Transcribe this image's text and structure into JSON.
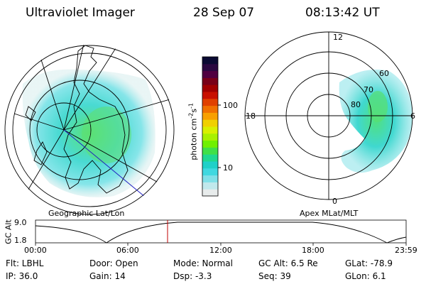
{
  "header": {
    "instrument": "Ultraviolet Imager",
    "date": "28 Sep 07",
    "time": "08:13:42 UT"
  },
  "colorbar": {
    "label": "photon cm",
    "label_exp1": "-2",
    "label_s": "s",
    "label_exp2": "-1",
    "ticks": [
      "100",
      "10"
    ],
    "colors": [
      "#0a0a32",
      "#2a0840",
      "#500040",
      "#780018",
      "#a00000",
      "#c81000",
      "#e04000",
      "#f07000",
      "#f8a000",
      "#f0d000",
      "#d8f000",
      "#a8f000",
      "#70f000",
      "#40e048",
      "#20d890",
      "#20d0c8",
      "#40d8e0",
      "#80e0e8",
      "#c0e8ec",
      "#e8ecec"
    ]
  },
  "geo_map": {
    "caption": "Geographic Lat/Lon"
  },
  "apex_map": {
    "caption": "Apex MLat/MLT",
    "mlt_labels": [
      "12",
      "18",
      "6",
      "0"
    ],
    "lat_labels": [
      "60",
      "70",
      "80"
    ]
  },
  "altitude_plot": {
    "ylabel": "GC Alt",
    "ymax": "9.0",
    "ymin": "1.8",
    "xticks": [
      "00:00",
      "06:00",
      "12:00",
      "18:00",
      "23:59"
    ]
  },
  "footer": {
    "filter": "Flt: LBHL",
    "ip": "IP: 36.0",
    "door": "Door: Open",
    "gain": "Gain: 14",
    "mode": "Mode: Normal",
    "dsp": "Dsp:    -3.3",
    "gcalt": "GC Alt: 6.5 Re",
    "seq": "Seq: 39",
    "glat": "GLat: -78.9",
    "glon": "GLon:   6.1"
  }
}
